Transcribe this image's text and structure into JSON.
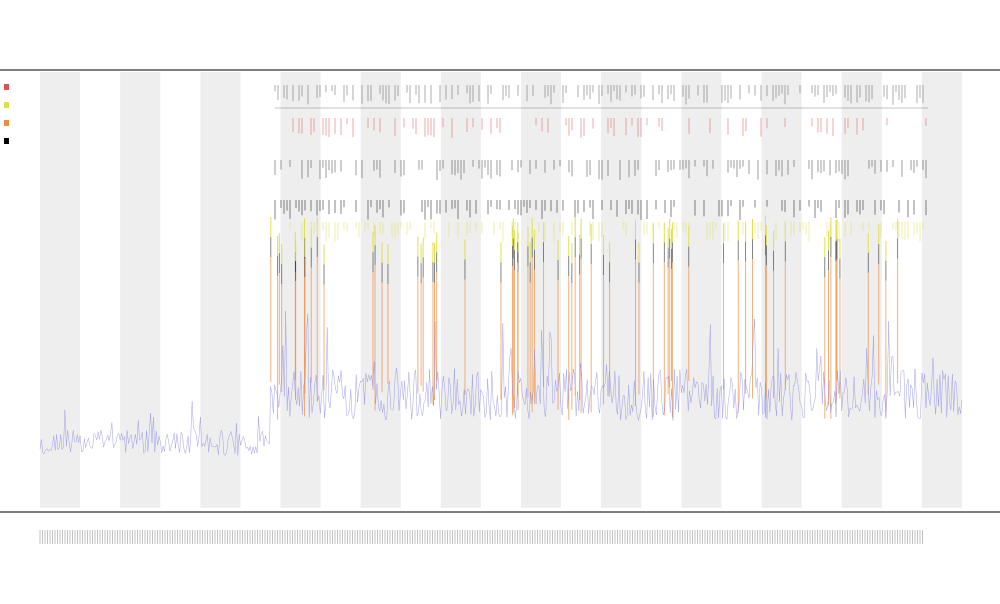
{
  "chart_data": {
    "type": "line",
    "title": "",
    "subtitle_lines": [
      "",
      ""
    ],
    "xlabel": "",
    "ylabel": "",
    "grid": false,
    "legend_position": "top-left",
    "bands": {
      "count": 12
    },
    "colors": {
      "signal": "#8a8ae6",
      "orange": "#f08a3c",
      "yellow": "#e0e04a",
      "black": "#000000",
      "red": "#e05050",
      "band": "#eeeeee",
      "axis": "#333333"
    },
    "trace": {
      "name": "",
      "x_range": [
        0,
        1000
      ],
      "y_range": [
        0,
        100
      ],
      "segments": [
        {
          "x": [
            0,
            250
          ],
          "level": 15,
          "noise": 3
        },
        {
          "x": [
            250,
            1000
          ],
          "level": 26,
          "noise": 6
        }
      ]
    },
    "event_rows": [
      {
        "name": "",
        "color": "#555555",
        "density": 0.55
      },
      {
        "name": "",
        "color": "#e05050",
        "density": 0.35
      },
      {
        "name": "",
        "color": "#333333",
        "density": 0.5
      },
      {
        "name": "",
        "color": "#000000",
        "density": 0.45
      },
      {
        "name": "",
        "color": "#e0e04a",
        "density": 0.4
      }
    ],
    "spikes": {
      "start": 250,
      "end": 1000,
      "count": 70
    },
    "legend": [
      {
        "label": "",
        "color": "#e05050"
      },
      {
        "label": "",
        "color": "#e0e04a"
      },
      {
        "label": "",
        "color": "#f08a3c"
      },
      {
        "label": "",
        "color": "#000000"
      }
    ]
  }
}
